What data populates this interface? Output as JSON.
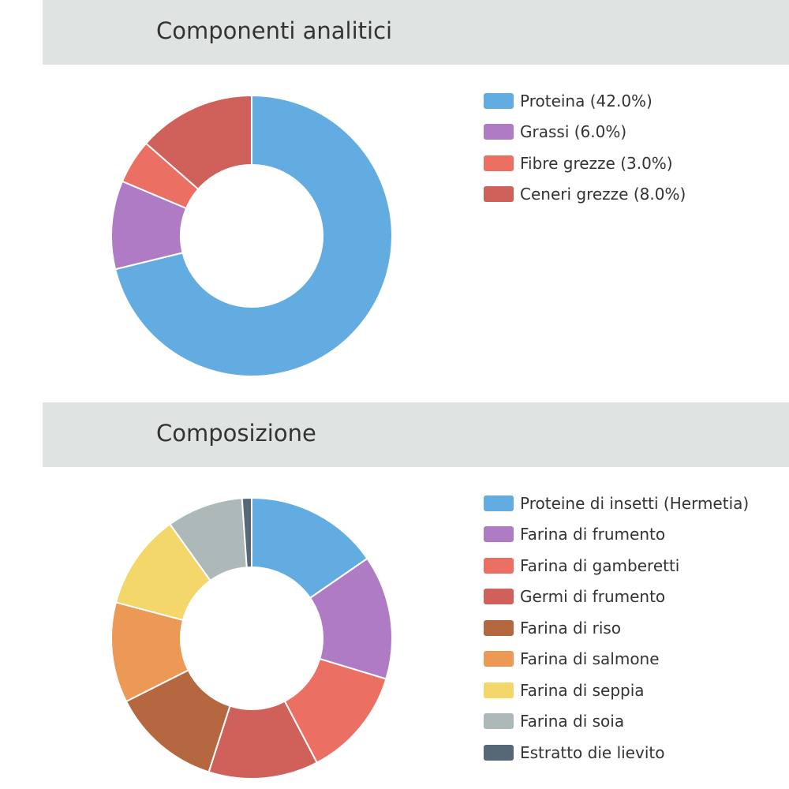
{
  "chart_data": [
    {
      "type": "pie",
      "title": "Componenti analitici",
      "donut": true,
      "legend_position": "right",
      "categories": [
        "Proteina",
        "Grassi",
        "Fibre grezze",
        "Ceneri grezze"
      ],
      "legend_labels": [
        "Proteina (42.0%)",
        "Grassi (6.0%)",
        "Fibre grezze (3.0%)",
        "Ceneri grezze (8.0%)"
      ],
      "values": [
        42.0,
        6.0,
        3.0,
        8.0
      ],
      "colors": [
        "#62ace1",
        "#b07bc5",
        "#ec6f63",
        "#d0605a"
      ]
    },
    {
      "type": "pie",
      "title": "Composizione",
      "donut": true,
      "legend_position": "right",
      "categories": [
        "Proteine di insetti (Hermetia)",
        "Farina di frumento",
        "Farina di gamberetti",
        "Germi di frumento",
        "Farina di riso",
        "Farina di salmone",
        "Farina di seppia",
        "Farina di soia",
        "Estratto die lievito"
      ],
      "legend_labels": [
        "Proteine di insetti (Hermetia)",
        "Farina di frumento",
        "Farina di gamberetti",
        "Germi di frumento",
        "Farina di riso",
        "Farina di salmone",
        "Farina di seppia",
        "Farina di soia",
        "Estratto die lievito"
      ],
      "values": [
        14,
        13,
        11.5,
        11.5,
        11.5,
        10.5,
        10,
        8,
        1
      ],
      "colors": [
        "#62ace1",
        "#b07bc5",
        "#ec6f63",
        "#d0605a",
        "#b5673f",
        "#eb9955",
        "#f4d76b",
        "#adb9b8",
        "#566778"
      ]
    }
  ]
}
